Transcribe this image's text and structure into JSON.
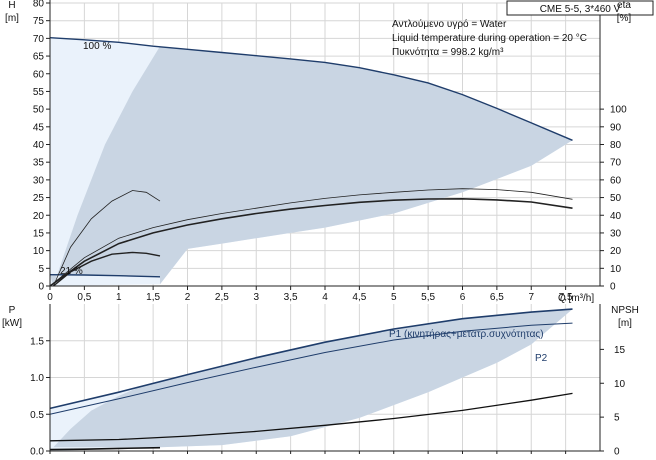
{
  "chart_data": [
    {
      "type": "line",
      "title": "CME 5-5, 3*460 V",
      "annotations": [
        "Αντλούμενο υγρό = Water",
        "Liquid temperature during operation = 20 °C",
        "Πυκνότητα = 998.2 kg/m³"
      ],
      "xlabel": "Q [m³/h]",
      "ylabel_left": [
        "H",
        "[m]"
      ],
      "ylabel_right": [
        "eta",
        "[%]"
      ],
      "xlim": [
        0,
        8
      ],
      "ylim_left": [
        0,
        80
      ],
      "ylim_right": [
        0,
        160
      ],
      "xticks": [
        "0",
        "0,5",
        "1",
        "1,5",
        "2",
        "2,5",
        "3",
        "3,5",
        "4",
        "4,5",
        "5",
        "5,5",
        "6",
        "6,5",
        "7",
        "7,5"
      ],
      "yticks_left": [
        "0",
        "5",
        "10",
        "15",
        "20",
        "25",
        "30",
        "35",
        "40",
        "45",
        "50",
        "55",
        "60",
        "65",
        "70",
        "75",
        "80"
      ],
      "yticks_right": [
        "0",
        "10",
        "20",
        "30",
        "40",
        "50",
        "60",
        "70",
        "80",
        "90",
        "100"
      ],
      "curve_labels": [
        "100 %",
        "21 %"
      ],
      "region_boundaries": {
        "max_speed_head": {
          "x": [
            0,
            0.5,
            1,
            1.5,
            2,
            2.5,
            3,
            3.5,
            4,
            4.5,
            5,
            5.5,
            6,
            6.5,
            7,
            7.6
          ],
          "y": [
            70.2,
            69.6,
            68.9,
            67.8,
            66.9,
            66.0,
            65.1,
            64.2,
            63.2,
            61.7,
            59.7,
            57.4,
            54.1,
            50.2,
            46.1,
            41.2
          ]
        },
        "min_speed_head": {
          "x": [
            0,
            0.5,
            1,
            1.6
          ],
          "y": [
            3.2,
            3.1,
            2.9,
            2.6
          ]
        },
        "max_flow_limit": {
          "x": [
            1.6,
            2.0,
            2.5,
            3.0,
            3.5,
            4.0,
            5.0,
            6.0,
            7.0,
            7.6
          ],
          "y": [
            0.5,
            10.5,
            12.0,
            13.5,
            15.0,
            16.5,
            20.5,
            26.5,
            34.0,
            41.2
          ]
        },
        "low_efficiency_limit": {
          "x": [
            0.05,
            0.4,
            0.8,
            1.2,
            1.6
          ],
          "y": [
            0,
            20,
            40,
            55,
            67.8
          ]
        }
      },
      "series": [
        {
          "axis": "left",
          "x": [
            0,
            0.5,
            1,
            1.5,
            2,
            2.5,
            3,
            3.5,
            4,
            4.5,
            5,
            5.5,
            6,
            6.5,
            7,
            7.6
          ],
          "y": [
            70.2,
            69.6,
            68.9,
            67.8,
            66.9,
            66.0,
            65.1,
            64.2,
            63.2,
            61.7,
            59.7,
            57.4,
            54.1,
            50.2,
            46.1,
            41.2
          ]
        },
        {
          "axis": "left",
          "x": [
            0,
            0.5,
            1,
            1.6
          ],
          "y": [
            3.2,
            3.1,
            2.9,
            2.6
          ]
        },
        {
          "axis": "right",
          "x": [
            0.05,
            0.3,
            0.6,
            0.9,
            1.2,
            1.4,
            1.6
          ],
          "y": [
            0,
            22,
            38,
            48,
            54,
            53,
            48
          ]
        },
        {
          "axis": "right",
          "x": [
            0.05,
            0.3,
            0.6,
            0.9,
            1.2,
            1.4,
            1.6
          ],
          "y": [
            0,
            8,
            14,
            18,
            19,
            18.5,
            17
          ]
        },
        {
          "axis": "right",
          "x": [
            0,
            0.5,
            1,
            1.5,
            2,
            2.5,
            3,
            3.5,
            4,
            4.5,
            5,
            5.5,
            6,
            6.5,
            7,
            7.6
          ],
          "y": [
            0,
            16,
            27,
            33,
            37.5,
            41,
            44,
            47,
            49.5,
            51.5,
            53,
            54.3,
            55,
            54.5,
            53,
            49
          ]
        },
        {
          "axis": "right",
          "x": [
            0,
            0.5,
            1,
            1.5,
            2,
            2.5,
            3,
            3.5,
            4,
            4.5,
            5,
            5.5,
            6,
            6.5,
            7,
            7.6
          ],
          "y": [
            0,
            14,
            24,
            30,
            34.5,
            38,
            41,
            43.5,
            45.5,
            47.3,
            48.5,
            49.2,
            49.3,
            48.7,
            47.5,
            44
          ]
        }
      ]
    },
    {
      "type": "line",
      "xlim": [
        0,
        8
      ],
      "ylabel_left": [
        "P",
        "[kW]"
      ],
      "ylabel_right": [
        "NPSH",
        "[m]"
      ],
      "ylim_left": [
        0,
        2
      ],
      "ylim_right": [
        0,
        21.7
      ],
      "yticks_left": [
        "0.0",
        "0.5",
        "1.0",
        "1.5"
      ],
      "yticks_right": [
        "0",
        "5",
        "10",
        "15"
      ],
      "region_boundaries": {
        "max_power_boundary": {
          "x": [
            0,
            1,
            2,
            3,
            4,
            5,
            6,
            7,
            7.6
          ],
          "y": [
            0.58,
            0.8,
            1.04,
            1.27,
            1.48,
            1.66,
            1.8,
            1.89,
            1.93
          ]
        },
        "max_flow_limit": {
          "x": [
            1.6,
            2.5,
            3.5,
            4.5,
            5.5,
            6.5,
            7.0,
            7.6
          ],
          "y": [
            0.05,
            0.08,
            0.2,
            0.45,
            0.8,
            1.2,
            1.45,
            1.93
          ]
        },
        "min_flow_limit": {
          "x": [
            0.05,
            0.3,
            0.6,
            1.0,
            1.3,
            1.6
          ],
          "y": [
            0.05,
            0.3,
            0.55,
            0.75,
            0.87,
            0.95
          ]
        }
      },
      "series": [
        {
          "name": "P1 (κινητήρας+μετατρ.συχνότητας)",
          "axis": "left",
          "x": [
            0,
            1,
            2,
            3,
            4,
            5,
            6,
            7,
            7.6
          ],
          "y": [
            0.58,
            0.8,
            1.04,
            1.27,
            1.48,
            1.66,
            1.8,
            1.89,
            1.93
          ]
        },
        {
          "name": "P2",
          "axis": "left",
          "x": [
            0,
            1,
            2,
            3,
            4,
            5,
            6,
            7,
            7.6
          ],
          "y": [
            0.5,
            0.71,
            0.93,
            1.14,
            1.34,
            1.51,
            1.63,
            1.71,
            1.74
          ]
        },
        {
          "axis": "right",
          "x": [
            0,
            1,
            2,
            3,
            4,
            5,
            6,
            7,
            7.6
          ],
          "y": [
            1.5,
            1.7,
            2.2,
            2.9,
            3.8,
            4.8,
            6.0,
            7.5,
            8.5
          ]
        },
        {
          "axis": "left",
          "x": [
            0,
            0.5,
            1,
            1.6
          ],
          "y": [
            0.02,
            0.025,
            0.035,
            0.045
          ]
        }
      ]
    }
  ]
}
